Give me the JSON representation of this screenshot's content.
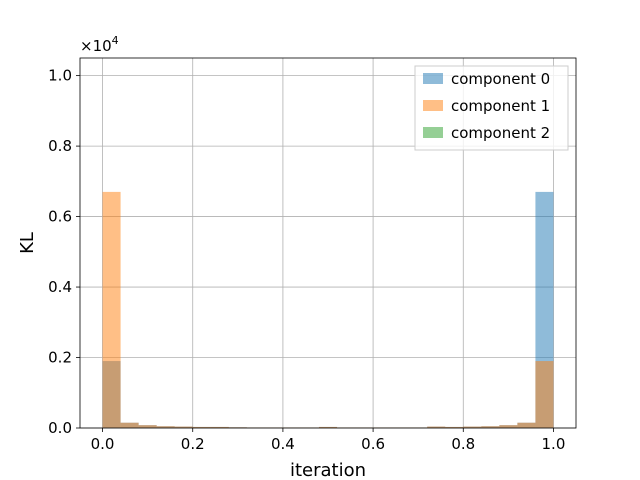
{
  "chart_data": {
    "type": "bar",
    "subtype": "overlapping-histogram",
    "title": "",
    "xlabel": "iteration",
    "ylabel": "KL",
    "y_offset_label": "×10",
    "y_offset_exponent": "4",
    "xlim": [
      -0.05,
      1.05
    ],
    "ylim": [
      0,
      10500
    ],
    "xticks": [
      0.0,
      0.2,
      0.4,
      0.6,
      0.8,
      1.0
    ],
    "xtick_labels": [
      "0.0",
      "0.2",
      "0.4",
      "0.6",
      "0.8",
      "1.0"
    ],
    "yticks": [
      0,
      2000,
      4000,
      6000,
      8000,
      10000
    ],
    "ytick_labels": [
      "0.0",
      "0.2",
      "0.4",
      "0.6",
      "0.8",
      "1.0"
    ],
    "grid": true,
    "legend_position": "top-right",
    "bin_edges": [
      0.0,
      0.04,
      0.08,
      0.12,
      0.16,
      0.2,
      0.24,
      0.28,
      0.32,
      0.36,
      0.4,
      0.44,
      0.48,
      0.52,
      0.56,
      0.6,
      0.64,
      0.68,
      0.72,
      0.76,
      0.8,
      0.84,
      0.88,
      0.92,
      0.96,
      1.0
    ],
    "series": [
      {
        "name": "component 0",
        "color": "#1f77b4",
        "opacity": 0.5,
        "values": [
          1900,
          150,
          80,
          50,
          40,
          30,
          30,
          20,
          15,
          15,
          15,
          15,
          30,
          15,
          15,
          15,
          15,
          15,
          40,
          30,
          40,
          50,
          80,
          150,
          6700
        ]
      },
      {
        "name": "component 1",
        "color": "#ff7f0e",
        "opacity": 0.5,
        "values": [
          6700,
          150,
          80,
          50,
          40,
          30,
          30,
          20,
          15,
          15,
          15,
          15,
          30,
          15,
          15,
          15,
          15,
          15,
          40,
          30,
          40,
          50,
          80,
          150,
          1900
        ]
      },
      {
        "name": "component 2",
        "color": "#2ca02c",
        "opacity": 0.5,
        "values": [
          0,
          0,
          0,
          0,
          0,
          0,
          0,
          0,
          0,
          0,
          0,
          0,
          0,
          0,
          0,
          0,
          0,
          0,
          0,
          0,
          0,
          0,
          0,
          0,
          0
        ]
      }
    ]
  }
}
